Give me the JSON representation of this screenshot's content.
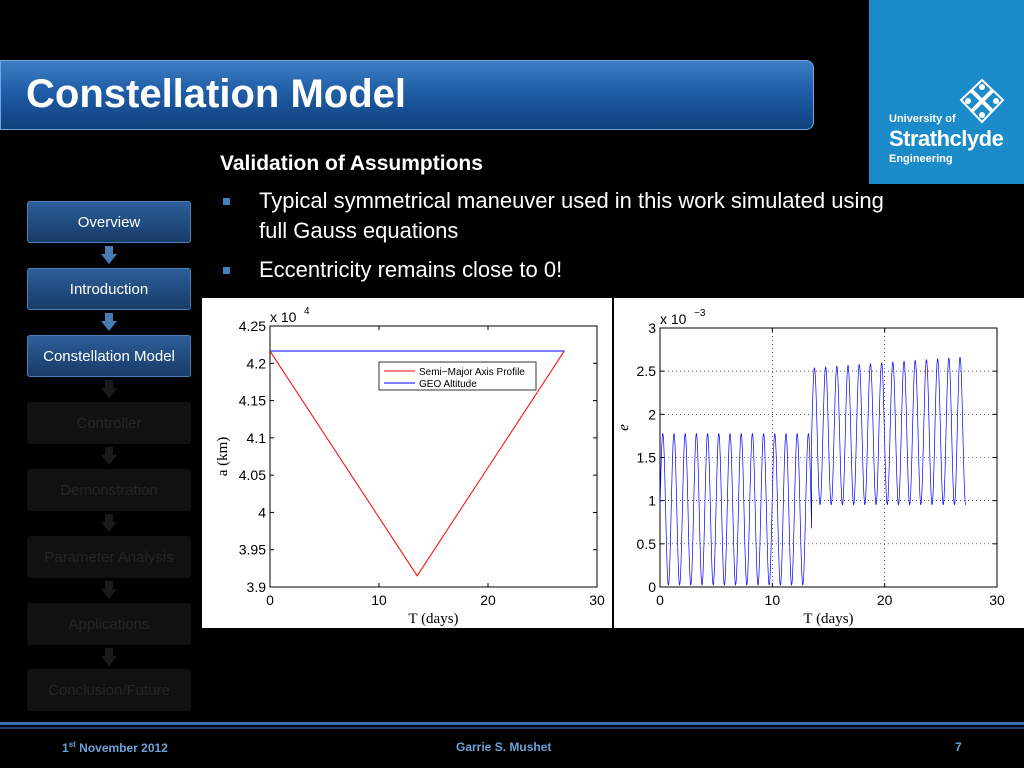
{
  "slide": {
    "title": "Constellation Model",
    "heading": "Validation of Assumptions",
    "bullets": [
      {
        "line1": "Typical symmetrical maneuver used in this work simulated using",
        "line2": "full Gauss equations"
      },
      {
        "line1": "Eccentricity remains close to 0!"
      }
    ]
  },
  "logo": {
    "line1": "University of",
    "line2": "Strathclyde",
    "line3": "Engineering"
  },
  "nav": {
    "items": [
      {
        "label": "Overview",
        "active": true
      },
      {
        "label": "Introduction",
        "active": true
      },
      {
        "label": "Constellation Model",
        "active": true
      },
      {
        "label": "Controller",
        "active": false
      },
      {
        "label": "Demonstration",
        "active": false
      },
      {
        "label": "Parameter Analysis",
        "active": false
      },
      {
        "label": "Applications",
        "active": false
      },
      {
        "label": "Conclusion/Future",
        "active": false
      }
    ]
  },
  "footer": {
    "date_num": "1",
    "date_sup": "st",
    "date_rest": " November 2012",
    "author": "Garrie S. Mushet",
    "page": "7"
  },
  "colors": {
    "accent": "#1f5ea6",
    "logo_bg": "#1b8bc9",
    "red_series": "#ff0000",
    "blue_series": "#0000ff"
  },
  "chart_data": [
    {
      "type": "line",
      "exponent_label": "x 10",
      "exponent": "4",
      "xlabel": "T (days)",
      "ylabel": "a (km)",
      "xlim": [
        0,
        30
      ],
      "ylim": [
        3.9,
        4.25
      ],
      "xticks": [
        "0",
        "10",
        "20",
        "30"
      ],
      "yticks": [
        "3.9",
        "3.95",
        "4",
        "4.05",
        "4.1",
        "4.15",
        "4.2",
        "4.25"
      ],
      "legend_position": "top-right",
      "series": [
        {
          "name": "Semi−Major Axis Profile",
          "color": "#ff0000",
          "x": [
            0,
            13.5,
            27
          ],
          "y": [
            4.2164,
            3.915,
            4.2164
          ]
        },
        {
          "name": "GEO Altitude",
          "color": "#0000ff",
          "x": [
            0,
            27
          ],
          "y": [
            4.2164,
            4.2164
          ]
        }
      ]
    },
    {
      "type": "line",
      "exponent_label": "x 10",
      "exponent": "−3",
      "xlabel": "T (days)",
      "ylabel": "e",
      "xlim": [
        0,
        30
      ],
      "ylim": [
        0,
        3
      ],
      "xticks": [
        "0",
        "10",
        "20",
        "30"
      ],
      "yticks": [
        "0",
        "0.5",
        "1",
        "1.5",
        "2",
        "2.5",
        "3"
      ],
      "grid": true,
      "series": [
        {
          "name": "",
          "color": "#0000ff",
          "segments": [
            {
              "x_start": 0,
              "x_end": 13.5,
              "period": 0.997,
              "y_min": 0.02,
              "y_max": 1.78
            },
            {
              "x_start": 13.5,
              "x_end": 27.2,
              "period": 0.997,
              "y_min": 0.95,
              "y_max_start": 2.54,
              "y_max_end": 2.67
            }
          ]
        }
      ]
    }
  ]
}
